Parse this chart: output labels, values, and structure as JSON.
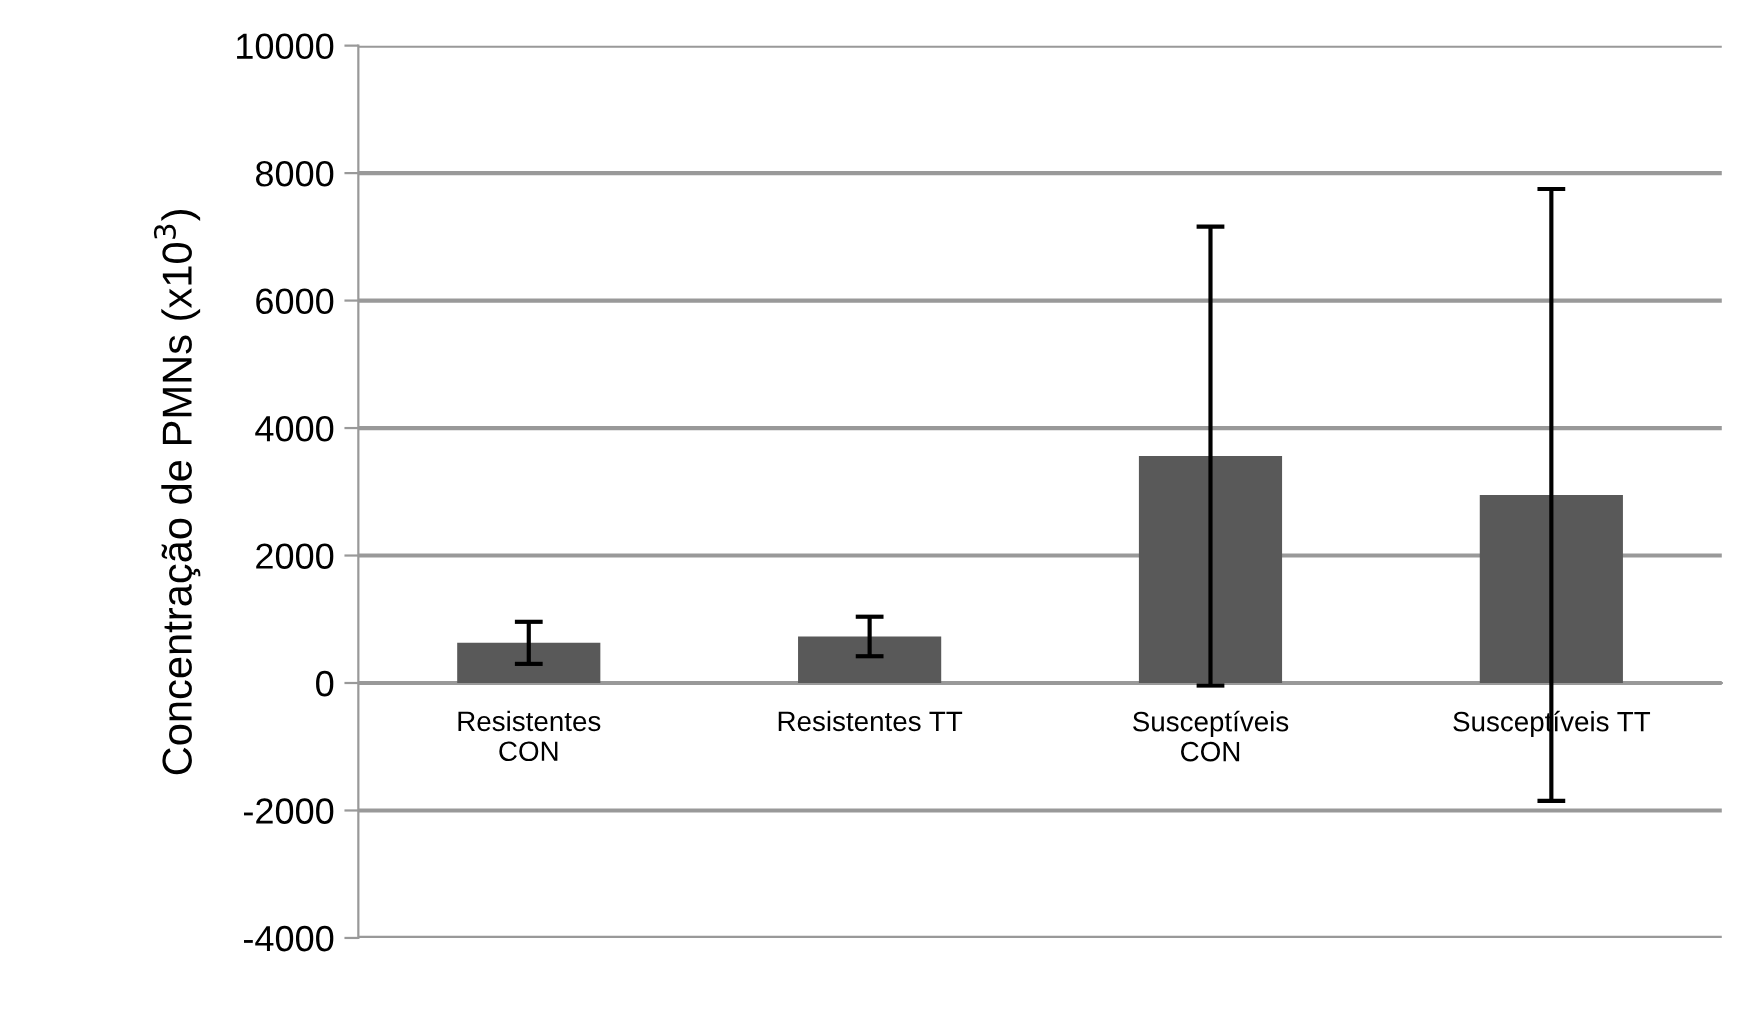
{
  "chart_data": {
    "type": "bar",
    "ylabel": "Concentração de PMNs (x10$^{3}$)",
    "categories": [
      "Resistentes\nCON",
      "Resistentes TT",
      "Susceptíveis\nCON",
      "Susceptíveis TT"
    ],
    "values": [
      630,
      730,
      3560,
      2950
    ],
    "errors": [
      330,
      310,
      3600,
      4800
    ],
    "color": "#595959",
    "ylim": [
      -4000,
      10000
    ],
    "yticks": [
      -4000,
      -2000,
      0,
      2000,
      4000,
      6000,
      8000,
      10000
    ],
    "grid": "y"
  }
}
